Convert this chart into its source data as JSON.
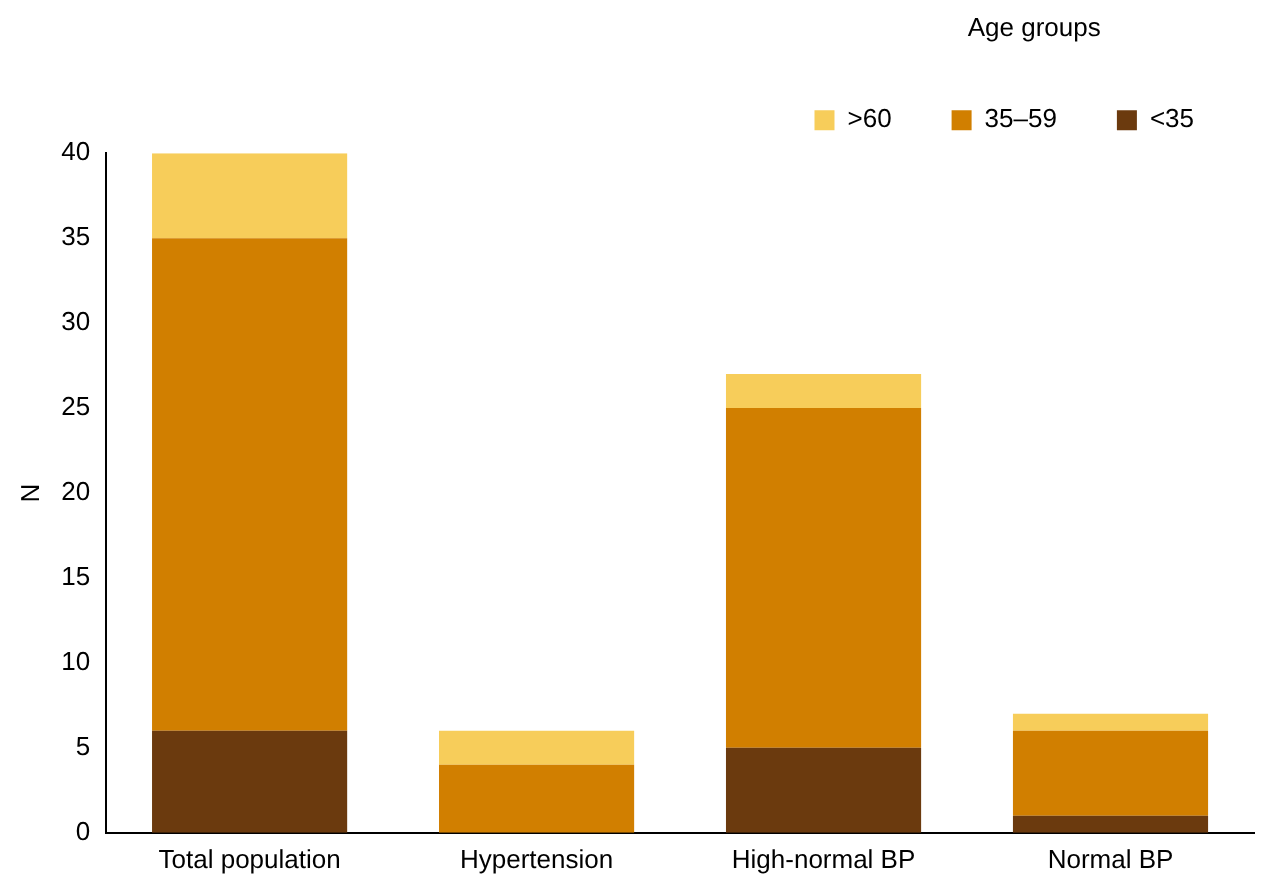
{
  "chart_data": {
    "type": "bar",
    "stacked": true,
    "ylabel": "N",
    "legend_title": "Age groups",
    "legend": "top right",
    "categories": [
      "Total population",
      "Hypertension",
      "High-normal BP",
      "Normal BP"
    ],
    "series": [
      {
        "name": "<35",
        "color": "#6b3a0e",
        "values": [
          6,
          0,
          5,
          1
        ]
      },
      {
        "name": "35–59",
        "color": "#d17f00",
        "values": [
          29,
          4,
          20,
          5
        ]
      },
      {
        "name": ">60",
        "color": "#f7cd5a",
        "values": [
          5,
          2,
          2,
          1
        ]
      }
    ],
    "ylim": [
      0,
      40
    ],
    "yticks": [
      0,
      5,
      10,
      15,
      20,
      25,
      30,
      35,
      40
    ],
    "grid": false
  }
}
